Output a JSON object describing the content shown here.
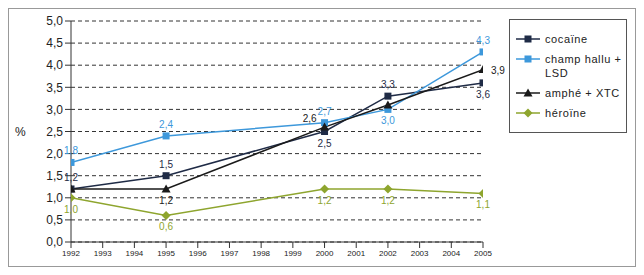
{
  "chart_data": {
    "type": "line",
    "y_label": "%",
    "x": [
      1992,
      1995,
      2000,
      2002,
      2005
    ],
    "xlim": [
      1992,
      2005
    ],
    "xticks": [
      1992,
      1993,
      1994,
      1995,
      1996,
      1997,
      1998,
      1999,
      2000,
      2001,
      2002,
      2003,
      2004,
      2005
    ],
    "ylim": [
      0,
      5
    ],
    "yticks": [
      {
        "value": 0,
        "label": "0,0"
      },
      {
        "value": 0.5,
        "label": "0,5"
      },
      {
        "value": 1,
        "label": "1,0"
      },
      {
        "value": 1.5,
        "label": "1,5"
      },
      {
        "value": 2,
        "label": "2,0"
      },
      {
        "value": 2.5,
        "label": "2,5"
      },
      {
        "value": 3,
        "label": "3,0"
      },
      {
        "value": 3.5,
        "label": "3,5"
      },
      {
        "value": 4,
        "label": "4,0"
      },
      {
        "value": 4.5,
        "label": "4,5"
      },
      {
        "value": 5,
        "label": "5,0"
      }
    ],
    "grid": true,
    "legend": "right",
    "data_labels": true,
    "series": [
      {
        "name": "cocaïne",
        "color": "#1f2b46",
        "marker": "square",
        "values": [
          1.2,
          1.5,
          2.5,
          3.3,
          3.6
        ],
        "value_labels": [
          "1,2",
          "1,5",
          "2,5",
          "3,3",
          "3,6"
        ]
      },
      {
        "name": "champ hallu + LSD",
        "color": "#3d98db",
        "marker": "square",
        "values": [
          1.8,
          2.4,
          2.7,
          3.0,
          4.3
        ],
        "value_labels": [
          "1,8",
          "2,4",
          "2,7",
          "3,0",
          "4,3"
        ]
      },
      {
        "name": "amphé + XTC",
        "color": "#1a1a1a",
        "marker": "triangle",
        "values": [
          1.2,
          1.2,
          2.6,
          3.1,
          3.9
        ],
        "value_labels": [
          null,
          "1,2",
          "2,6",
          null,
          "3,9"
        ]
      },
      {
        "name": "héroïne",
        "color": "#8ea52e",
        "marker": "diamond",
        "values": [
          1.0,
          0.6,
          1.2,
          1.2,
          1.1
        ],
        "value_labels": [
          "1,0",
          "0,6",
          "1,2",
          "1,2",
          "1,1"
        ]
      }
    ]
  }
}
